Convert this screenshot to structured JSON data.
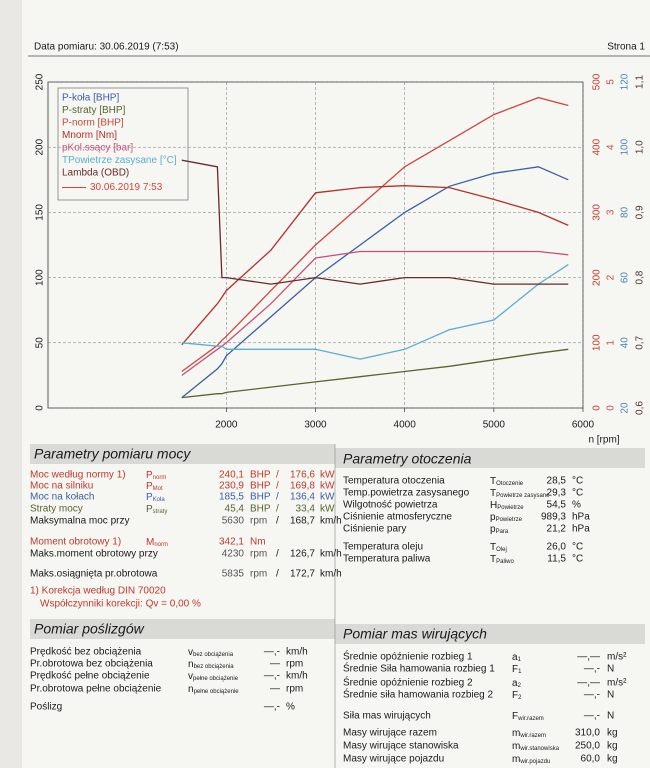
{
  "header": {
    "date": "Data pomiaru: 30.06.2019 (7:53)",
    "page": "Strona 1"
  },
  "chart_data": {
    "type": "line",
    "x_label": "n [rpm]",
    "x": [
      1500,
      1900,
      1950,
      2000,
      2500,
      3000,
      3500,
      4000,
      4500,
      5000,
      5500,
      5835
    ],
    "xlim": [
      0,
      6000
    ],
    "xticks": [
      2000,
      3000,
      4000,
      5000,
      6000
    ],
    "ylim": [
      0,
      250
    ],
    "yticks": [
      0,
      50,
      100,
      150,
      200,
      250
    ],
    "y2lim": [
      0,
      500
    ],
    "y2ticks": [
      0,
      100,
      200,
      300,
      400,
      500
    ],
    "y2color": "#c0392b",
    "y3lim": [
      0,
      5
    ],
    "y3ticks": [
      0,
      1,
      2,
      3,
      4,
      5
    ],
    "y3color": "#c84a4a",
    "y4lim": [
      20,
      120
    ],
    "y4ticks": [
      20,
      40,
      60,
      80,
      100,
      120
    ],
    "y4color": "#4a86b8",
    "y5lim": [
      0.6,
      1.1
    ],
    "y5ticks": [
      {
        "value": 0.6,
        "label": "0,6"
      },
      {
        "value": 0.7,
        "label": "0,7"
      },
      {
        "value": 0.8,
        "label": "0,8"
      },
      {
        "value": 0.9,
        "label": "0,9"
      },
      {
        "value": 1.0,
        "label": "1,0"
      },
      {
        "value": 1.1,
        "label": "1,1"
      }
    ],
    "y5color": "#5a3030",
    "grid": true,
    "legend": "top-left",
    "legend_note": {
      "name": "30.06.2019 7:53",
      "color": "#d0463c"
    },
    "series": [
      {
        "name": "P-koła [BHP]",
        "color": "#3a5fa8",
        "axis": "y",
        "values": [
          8,
          30,
          34,
          40,
          70,
          100,
          125,
          150,
          170,
          180,
          185,
          175
        ]
      },
      {
        "name": "P-straty [BHP]",
        "color": "#56652c",
        "axis": "y",
        "values": [
          8,
          11,
          11,
          12,
          16,
          20,
          24,
          28,
          32,
          37,
          42,
          45
        ]
      },
      {
        "name": "P-norm [BHP]",
        "color": "#d0463c",
        "axis": "y",
        "values": [
          28,
          48,
          52,
          55,
          90,
          125,
          155,
          185,
          205,
          225,
          238,
          232
        ]
      },
      {
        "name": "Mnorm [Nm]",
        "color": "#b5302a",
        "axis": "y2",
        "values": [
          97,
          160,
          170,
          180,
          242,
          330,
          338,
          341,
          338,
          320,
          300,
          280
        ]
      },
      {
        "name": "pKol.ssący [bar]",
        "color": "#c8507a",
        "axis": "y3",
        "values": [
          0.5,
          0.9,
          0.95,
          1.0,
          1.6,
          2.3,
          2.4,
          2.4,
          2.4,
          2.4,
          2.4,
          2.35
        ]
      },
      {
        "name": "TPowietrze zasysane [°C]",
        "color": "#5aaed0",
        "axis": "y4",
        "values": [
          40,
          39,
          39,
          38,
          38,
          38,
          35,
          38,
          44,
          47,
          58,
          64
        ]
      },
      {
        "name": "Lambda (OBD)",
        "color": "#6b2a2a",
        "axis": "y5",
        "values": [
          0.98,
          0.97,
          0.8,
          0.8,
          0.79,
          0.8,
          0.79,
          0.8,
          0.8,
          0.79,
          0.79,
          0.79
        ]
      }
    ]
  },
  "power": {
    "title": "Parametry pomiaru mocy",
    "separator": "/",
    "rows": [
      {
        "label": "Moc według normy 1)",
        "symbol": {
          "main": "P",
          "sub": "norm"
        },
        "value1": "240,1",
        "unit1": "BHP",
        "value2": "176,6",
        "unit2": "kW",
        "color": "#c0392b"
      },
      {
        "label": "Moc na silniku",
        "symbol": {
          "main": "P",
          "sub": "Mot"
        },
        "value1": "230,9",
        "unit1": "BHP",
        "value2": "169,8",
        "unit2": "kW",
        "color": "#c0392b"
      },
      {
        "label": "Moc na kołach",
        "symbol": {
          "main": "P",
          "sub": "Koła"
        },
        "value1": "185,5",
        "unit1": "BHP",
        "value2": "136,4",
        "unit2": "kW",
        "color": "#3a5fa8"
      },
      {
        "label": "Straty mocy",
        "symbol": {
          "main": "P",
          "sub": "straty"
        },
        "value1": "45,4",
        "unit1": "BHP",
        "value2": "33,4",
        "unit2": "kW",
        "color": "#56652c"
      },
      {
        "label": "Maksymalna moc przy",
        "value1": "5630",
        "unit1": "rpm",
        "value2": "168,7",
        "unit2": "km/h",
        "color": "#1a1a1a"
      },
      {
        "label": "Moment obrotowy 1)",
        "symbol": {
          "main": "M",
          "sub": "norm"
        },
        "value1": "342,1",
        "unit1": "Nm",
        "color": "#c0392b"
      },
      {
        "label": "Maks.moment obrotowy przy",
        "value1": "4230",
        "unit1": "rpm",
        "value2": "126,7",
        "unit2": "km/h",
        "color": "#1a1a1a"
      },
      {
        "label": "Maks.osiągnięta pr.obrotowa",
        "value1": "5835",
        "unit1": "rpm",
        "value2": "172,7",
        "unit2": "km/h",
        "color": "#1a1a1a"
      }
    ],
    "note": "1) Korekcja według DIN 70020",
    "factors": "Współczynniki korekcji: Qv = 0,00 %"
  },
  "ambient": {
    "title": "Parametry otoczenia",
    "rows": [
      {
        "label": "Temperatura otoczenia",
        "symbol": {
          "main": "T",
          "sub": "Otoczenie"
        },
        "value": "28,5",
        "unit": "°C"
      },
      {
        "label": "Temp.powietrza zasysanego",
        "symbol": {
          "main": "T",
          "sub": "Powietrze zasysane"
        },
        "value": "29,3",
        "unit": "°C"
      },
      {
        "label": "Wilgotność powietrza",
        "symbol": {
          "main": "H",
          "sub": "Powietrze"
        },
        "value": "54,5",
        "unit": "%"
      },
      {
        "label": "Ciśnienie atmosferyczne",
        "symbol": {
          "main": "p",
          "sub": "Powietrze"
        },
        "value": "989,3",
        "unit": "hPa"
      },
      {
        "label": "Ciśnienie pary",
        "symbol": {
          "main": "p",
          "sub": "Para"
        },
        "value": "21,2",
        "unit": "hPa"
      },
      {
        "label": "Temperatura oleju",
        "symbol": {
          "main": "T",
          "sub": "Olej"
        },
        "value": "26,0",
        "unit": "°C"
      },
      {
        "label": "Temperatura paliwa",
        "symbol": {
          "main": "T",
          "sub": "Paliwo"
        },
        "value": "11,5",
        "unit": "°C"
      }
    ]
  },
  "slip": {
    "title": "Pomiar poślizgów",
    "rows": [
      {
        "label": "Prędkość bez obciążenia",
        "symbol": {
          "main": "v",
          "sub": "bez obciążenia"
        },
        "value": "—,-",
        "unit": "km/h"
      },
      {
        "label": "Pr.obrotowa bez obciążenia",
        "symbol": {
          "main": "n",
          "sub": "bez obciążenia"
        },
        "value": "—",
        "unit": "rpm"
      },
      {
        "label": "Prędkość pełne obciążenie",
        "symbol": {
          "main": "v",
          "sub": "pełne obciążenie"
        },
        "value": "—,-",
        "unit": "km/h"
      },
      {
        "label": "Pr.obrotowa pełne obciążenie",
        "symbol": {
          "main": "n",
          "sub": "pełne obciążenie"
        },
        "value": "—",
        "unit": "rpm"
      },
      {
        "label": "Poślizg",
        "value": "—,-",
        "unit": "%"
      }
    ]
  },
  "masses": {
    "title": "Pomiar mas wirujących",
    "rows": [
      {
        "label": "Średnie opóźnienie rozbieg 1",
        "symbol": {
          "main": "a",
          "sub": "1"
        },
        "value": "—,—",
        "unit": "m/s²"
      },
      {
        "label": "Średnie Siła hamowania rozbieg 1",
        "symbol": {
          "main": "F",
          "sub": "1"
        },
        "value": "—,-",
        "unit": "N"
      },
      {
        "label": "Średnie opóźnienie rozbieg 2",
        "symbol": {
          "main": "a",
          "sub": "2"
        },
        "value": "—,—",
        "unit": "m/s²"
      },
      {
        "label": "Średnie siła hamowania rozbieg 2",
        "symbol": {
          "main": "F",
          "sub": "2"
        },
        "value": "—,-",
        "unit": "N"
      },
      {
        "label": "Siła mas wirujących",
        "symbol": {
          "main": "F",
          "sub": "wir.razem"
        },
        "value": "—,-",
        "unit": "N"
      },
      {
        "label": "Masy wirujące razem",
        "symbol": {
          "main": "m",
          "sub": "wir.razem"
        },
        "value": "310,0",
        "unit": "kg"
      },
      {
        "label": "Masy wirujące stanowiska",
        "symbol": {
          "main": "m",
          "sub": "wir.stanowiska"
        },
        "value": "250,0",
        "unit": "kg"
      },
      {
        "label": "Masy wirujące pojazdu",
        "symbol": {
          "main": "m",
          "sub": "wir.pojazdu"
        },
        "value": "60,0",
        "unit": "kg"
      }
    ]
  }
}
